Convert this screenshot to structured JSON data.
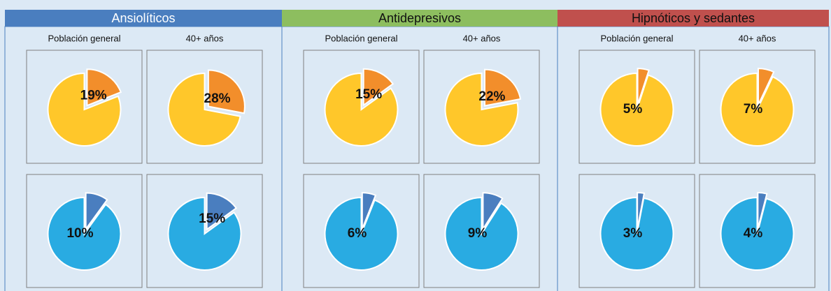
{
  "panels": [
    {
      "title": "Ansiolíticos",
      "header_color": "#4a7ebf",
      "title_color": "#ffffff",
      "columns": [
        "Población general",
        "40+ años"
      ],
      "chart_data": [
        {
          "type": "pie",
          "values": [
            19
          ],
          "value_labels": [
            "19%"
          ],
          "colors": [
            "#f28e2b",
            "#ffc72a"
          ]
        },
        {
          "type": "pie",
          "values": [
            28
          ],
          "value_labels": [
            "28%"
          ],
          "colors": [
            "#f28e2b",
            "#ffc72a"
          ]
        },
        {
          "type": "pie",
          "values": [
            10
          ],
          "value_labels": [
            "10%"
          ],
          "colors": [
            "#4a7ebf",
            "#29abe2"
          ]
        },
        {
          "type": "pie",
          "values": [
            15
          ],
          "value_labels": [
            "15%"
          ],
          "colors": [
            "#4a7ebf",
            "#29abe2"
          ]
        }
      ]
    },
    {
      "title": "Antidepresivos",
      "header_color": "#8dbe5f",
      "title_color": "#111111",
      "columns": [
        "Población general",
        "40+ años"
      ],
      "chart_data": [
        {
          "type": "pie",
          "values": [
            15
          ],
          "value_labels": [
            "15%"
          ],
          "colors": [
            "#f28e2b",
            "#ffc72a"
          ]
        },
        {
          "type": "pie",
          "values": [
            22
          ],
          "value_labels": [
            "22%"
          ],
          "colors": [
            "#f28e2b",
            "#ffc72a"
          ]
        },
        {
          "type": "pie",
          "values": [
            6
          ],
          "value_labels": [
            "6%"
          ],
          "colors": [
            "#4a7ebf",
            "#29abe2"
          ]
        },
        {
          "type": "pie",
          "values": [
            9
          ],
          "value_labels": [
            "9%"
          ],
          "colors": [
            "#4a7ebf",
            "#29abe2"
          ]
        }
      ]
    },
    {
      "title": "Hipnóticos y sedantes",
      "header_color": "#c0504d",
      "title_color": "#111111",
      "columns": [
        "Población general",
        "40+ años"
      ],
      "chart_data": [
        {
          "type": "pie",
          "values": [
            5
          ],
          "value_labels": [
            "5%"
          ],
          "colors": [
            "#f28e2b",
            "#ffc72a"
          ]
        },
        {
          "type": "pie",
          "values": [
            7
          ],
          "value_labels": [
            "7%"
          ],
          "colors": [
            "#f28e2b",
            "#ffc72a"
          ]
        },
        {
          "type": "pie",
          "values": [
            3
          ],
          "value_labels": [
            "3%"
          ],
          "colors": [
            "#4a7ebf",
            "#29abe2"
          ]
        },
        {
          "type": "pie",
          "values": [
            4
          ],
          "value_labels": [
            "4%"
          ],
          "colors": [
            "#4a7ebf",
            "#29abe2"
          ]
        }
      ]
    }
  ]
}
